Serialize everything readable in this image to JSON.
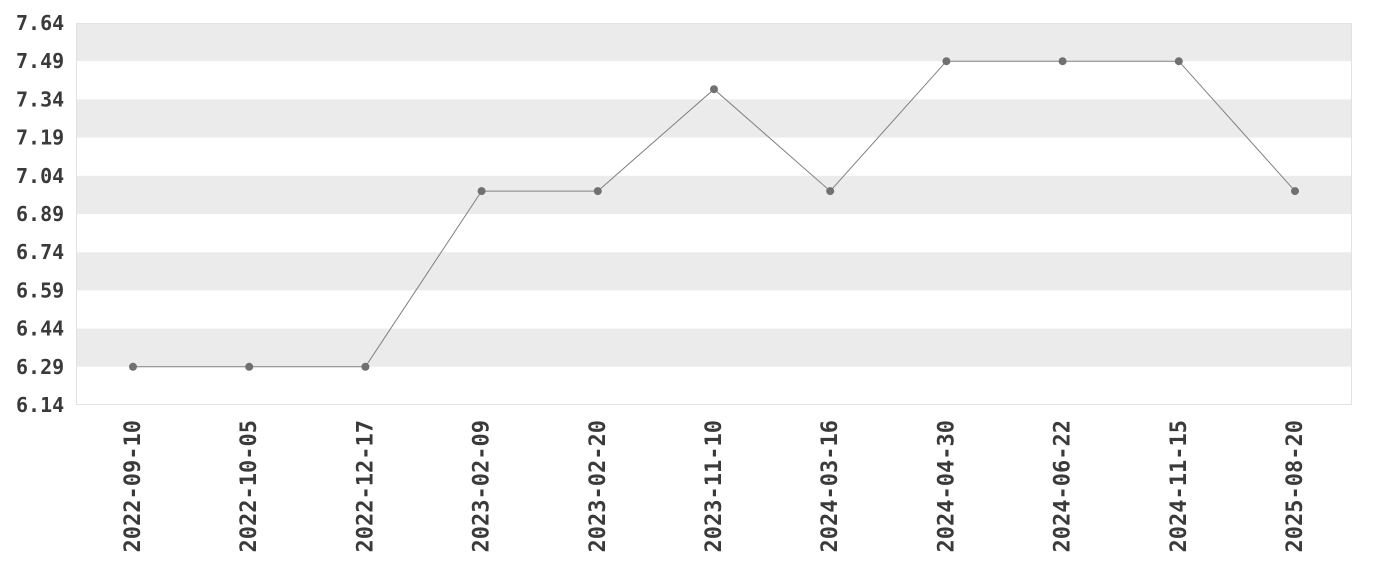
{
  "chart_data": {
    "type": "line",
    "title": "",
    "xlabel": "",
    "ylabel": "",
    "x": [
      "2022-09-10",
      "2022-10-05",
      "2022-12-17",
      "2023-02-09",
      "2023-02-20",
      "2023-11-10",
      "2024-03-16",
      "2024-04-30",
      "2024-06-22",
      "2024-11-15",
      "2025-08-20"
    ],
    "series": [
      {
        "values": [
          6.29,
          6.29,
          6.29,
          6.98,
          6.98,
          7.38,
          6.98,
          7.49,
          7.49,
          7.49,
          6.98
        ]
      }
    ],
    "y_ticks": [
      "6.14",
      "6.29",
      "6.44",
      "6.59",
      "6.74",
      "6.89",
      "7.04",
      "7.19",
      "7.34",
      "7.49",
      "7.64"
    ],
    "ylim": [
      6.14,
      7.64
    ],
    "grid": "alternating horizontal bands",
    "legend": "none",
    "colors": {
      "line": "#808080",
      "marker": "#707070",
      "band": "#ebebeb",
      "background": "#ffffff",
      "tick_text": "#3a3a3a"
    }
  }
}
